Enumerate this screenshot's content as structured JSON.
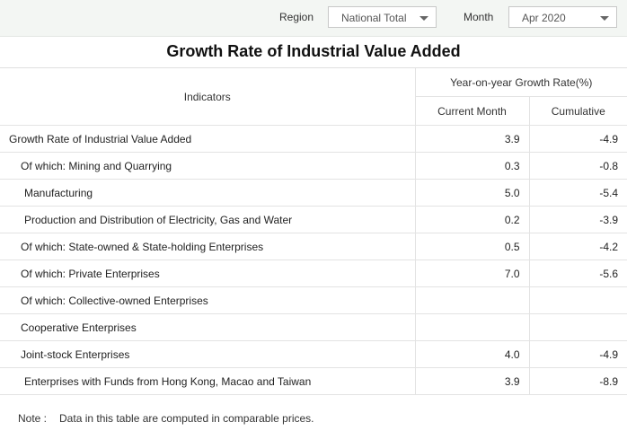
{
  "filters": {
    "region_label": "Region",
    "region_value": "National Total",
    "month_label": "Month",
    "month_value": "Apr 2020"
  },
  "title": "Growth Rate of Industrial Value Added",
  "table": {
    "header_indicators": "Indicators",
    "header_group": "Year-on-year Growth Rate(%)",
    "header_current": "Current Month",
    "header_cumulative": "Cumulative",
    "rows": [
      {
        "indicator": "Growth Rate of Industrial Value Added",
        "current": "3.9",
        "cumulative": "-4.9"
      },
      {
        "indicator": "Of which: Mining and Quarrying",
        "current": "0.3",
        "cumulative": "-0.8"
      },
      {
        "indicator": "Manufacturing",
        "current": "5.0",
        "cumulative": "-5.4"
      },
      {
        "indicator": "Production and Distribution of Electricity, Gas and Water",
        "current": "0.2",
        "cumulative": "-3.9"
      },
      {
        "indicator": "Of which: State-owned & State-holding Enterprises",
        "current": "0.5",
        "cumulative": "-4.2"
      },
      {
        "indicator": "Of which: Private Enterprises",
        "current": "7.0",
        "cumulative": "-5.6"
      },
      {
        "indicator": "Of which: Collective-owned Enterprises",
        "current": "",
        "cumulative": ""
      },
      {
        "indicator": "Cooperative Enterprises",
        "current": "",
        "cumulative": ""
      },
      {
        "indicator": "Joint-stock Enterprises",
        "current": "4.0",
        "cumulative": "-4.9"
      },
      {
        "indicator": "Enterprises with Funds from Hong Kong, Macao and Taiwan",
        "current": "3.9",
        "cumulative": "-8.9"
      }
    ]
  },
  "note": {
    "label": "Note :",
    "text": "Data in this table are computed in comparable prices."
  }
}
